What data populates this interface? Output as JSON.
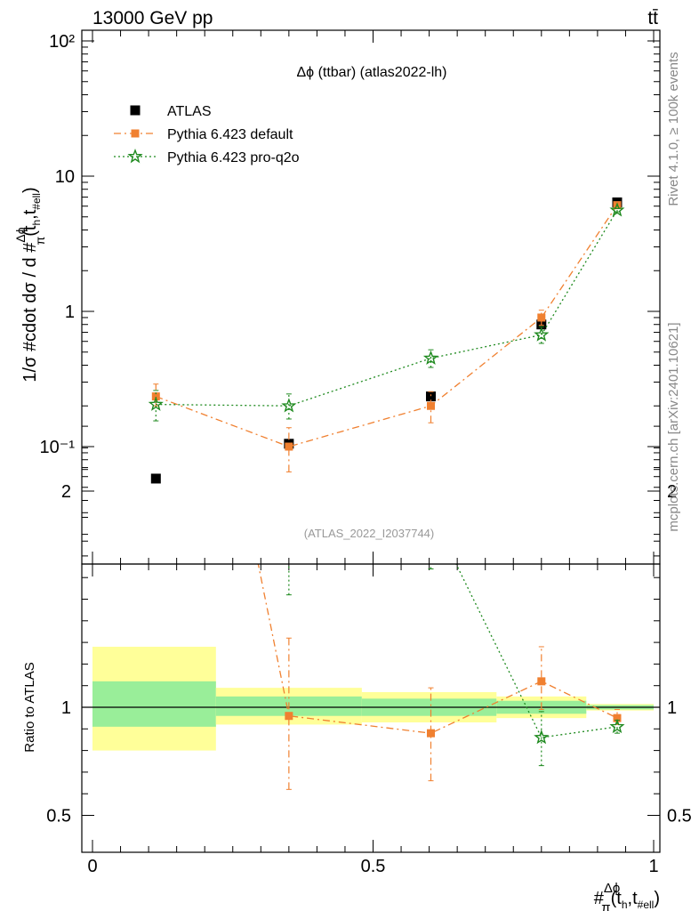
{
  "header": {
    "energy_label": "13000 GeV pp",
    "process_label": "tt̄"
  },
  "side_labels": {
    "rivet": "Rivet 4.1.0, ≥ 100k events",
    "source": "mcplots.cern.ch [arXiv:2401.10621]"
  },
  "chart_data": [
    {
      "type": "scatter",
      "title": "Δϕ (ttbar) (atlas2022-lh)",
      "watermark": "(ATLAS_2022_I2037744)",
      "ylabel": "1/σ #cdot dσ / d #Δϕπ(th,t#ell)",
      "yscale": "log",
      "ylim": [
        0.018,
        120
      ],
      "xlim": [
        0,
        1
      ],
      "y_tick_labels": [
        "10⁻¹",
        "1",
        "10",
        "10²"
      ],
      "legend": [
        "ATLAS",
        "Pythia 6.423 default",
        "Pythia 6.423 pro-q2o"
      ],
      "legend_position": "top-left",
      "series": [
        {
          "name": "ATLAS",
          "color": "#000000",
          "marker": "square",
          "x": [
            0.113,
            0.35,
            0.603,
            0.8,
            0.935
          ],
          "y": [
            0.058,
            0.105,
            0.235,
            0.8,
            6.4
          ]
        },
        {
          "name": "Pythia 6.423 default",
          "color": "#f08030",
          "marker": "square",
          "line": "dashdot",
          "x": [
            0.113,
            0.35,
            0.603,
            0.8,
            0.935
          ],
          "y": [
            0.235,
            0.1,
            0.2,
            0.9,
            6.1
          ],
          "err_lo": [
            0.2,
            0.065,
            0.15,
            0.79,
            5.9
          ],
          "err_hi": [
            0.29,
            0.138,
            0.255,
            1.02,
            6.3
          ]
        },
        {
          "name": "Pythia 6.423 pro-q2o",
          "color": "#1f8a1f",
          "marker": "star",
          "line": "dotted",
          "x": [
            0.113,
            0.35,
            0.603,
            0.8,
            0.935
          ],
          "y": [
            0.205,
            0.2,
            0.45,
            0.67,
            5.6
          ],
          "err_lo": [
            0.155,
            0.16,
            0.385,
            0.58,
            5.45
          ],
          "err_hi": [
            0.26,
            0.245,
            0.52,
            0.77,
            5.75
          ]
        }
      ]
    },
    {
      "type": "scatter",
      "ylabel": "Ratio to ATLAS",
      "ylim": [
        0.4,
        2.35
      ],
      "xlim": [
        0,
        1
      ],
      "xlabel": "#Δϕπ(th,t#ell)",
      "x_tick_labels": [
        "0",
        "0.5",
        "1"
      ],
      "y_tick_labels": [
        "0.5",
        "1",
        "2"
      ],
      "reference_line": 1,
      "bands": [
        {
          "x0": 0,
          "x1": 0.22,
          "inner": [
            0.91,
            1.12
          ],
          "outer": [
            0.8,
            1.28
          ]
        },
        {
          "x0": 0.22,
          "x1": 0.48,
          "inner": [
            0.96,
            1.05
          ],
          "outer": [
            0.92,
            1.09
          ]
        },
        {
          "x0": 0.48,
          "x1": 0.72,
          "inner": [
            0.96,
            1.04
          ],
          "outer": [
            0.93,
            1.07
          ]
        },
        {
          "x0": 0.72,
          "x1": 0.88,
          "inner": [
            0.97,
            1.03
          ],
          "outer": [
            0.95,
            1.05
          ]
        },
        {
          "x0": 0.88,
          "x1": 1,
          "inner": [
            0.99,
            1.01
          ],
          "outer": [
            0.985,
            1.015
          ]
        }
      ],
      "series": [
        {
          "name": "Pythia 6.423 default",
          "color": "#f08030",
          "marker": "square",
          "line": "dashdot",
          "x": [
            0.35,
            0.603,
            0.8,
            0.935
          ],
          "y": [
            0.96,
            0.88,
            1.12,
            0.95
          ],
          "err_lo": [
            0.62,
            0.66,
            0.99,
            0.92
          ],
          "err_hi": [
            1.32,
            1.09,
            1.28,
            0.99
          ],
          "offscale_start": {
            "x": 0.113,
            "y": 4.0
          }
        },
        {
          "name": "Pythia 6.423 pro-q2o",
          "color": "#1f8a1f",
          "marker": "star",
          "line": "dotted",
          "x": [
            0.35,
            0.603,
            0.8,
            0.935
          ],
          "y": [
            1.92,
            1.9,
            0.86,
            0.91
          ],
          "err_lo": [
            1.52,
            1.64,
            0.73,
            0.88
          ],
          "err_hi": [
            2.3,
            2.18,
            0.98,
            0.94
          ],
          "offscale_start": {
            "x": 0.113,
            "y": 3.5
          }
        }
      ]
    }
  ]
}
